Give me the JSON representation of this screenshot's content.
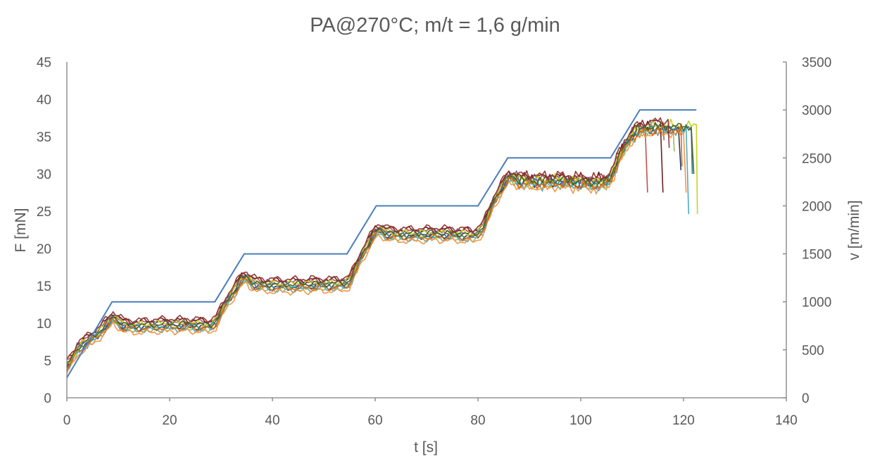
{
  "chart_data": {
    "type": "line",
    "title": "PA@270°C; m/t = 1,6 g/min",
    "xlabel": "t [s]",
    "ylabel_left": "F [mN]",
    "ylabel_right": "v [m/min]",
    "xlim": [
      0,
      140
    ],
    "ylim_left": [
      0,
      45
    ],
    "ylim_right": [
      0,
      3500
    ],
    "x_ticks": [
      "0",
      "20",
      "40",
      "60",
      "80",
      "100",
      "120",
      "140"
    ],
    "y_left_ticks": [
      "0",
      "5",
      "10",
      "15",
      "20",
      "25",
      "30",
      "35",
      "40",
      "45"
    ],
    "y_right_ticks": [
      "0",
      "500",
      "1000",
      "1500",
      "2000",
      "2500",
      "3000",
      "3500"
    ],
    "grid": false,
    "legend": "none",
    "speed_series": {
      "axis": "right",
      "color": "#4a7ebb",
      "points": [
        [
          0,
          210
        ],
        [
          8.8,
          1000
        ],
        [
          28.8,
          1000
        ],
        [
          34.5,
          1500
        ],
        [
          54.5,
          1500
        ],
        [
          60.2,
          2000
        ],
        [
          80,
          2000
        ],
        [
          85.8,
          2500
        ],
        [
          105.8,
          2500
        ],
        [
          111.5,
          3000
        ],
        [
          122.5,
          3000
        ]
      ]
    },
    "force_steps": {
      "axis": "left",
      "points": [
        [
          0,
          4.3
        ],
        [
          1,
          5.2
        ],
        [
          2,
          6.6
        ],
        [
          4,
          7.6
        ],
        [
          6,
          8.6
        ],
        [
          8,
          10.0
        ],
        [
          9,
          10.8
        ],
        [
          10,
          10.3
        ],
        [
          11,
          9.7
        ],
        [
          13,
          9.6
        ],
        [
          16,
          9.7
        ],
        [
          20,
          9.8
        ],
        [
          24,
          9.8
        ],
        [
          28,
          9.7
        ],
        [
          29,
          10.2
        ],
        [
          30,
          11.5
        ],
        [
          31,
          12.8
        ],
        [
          32,
          13.8
        ],
        [
          33,
          14.8
        ],
        [
          34,
          15.9
        ],
        [
          35,
          16.2
        ],
        [
          36,
          15.5
        ],
        [
          37,
          15.2
        ],
        [
          40,
          15.1
        ],
        [
          44,
          15.1
        ],
        [
          48,
          15.2
        ],
        [
          52,
          15.2
        ],
        [
          54,
          15.3
        ],
        [
          55,
          15.6
        ],
        [
          56,
          17.0
        ],
        [
          57,
          18.6
        ],
        [
          58,
          19.9
        ],
        [
          59,
          21.0
        ],
        [
          60,
          22.2
        ],
        [
          61,
          22.6
        ],
        [
          62,
          22.1
        ],
        [
          64,
          21.9
        ],
        [
          68,
          21.9
        ],
        [
          72,
          22.0
        ],
        [
          76,
          21.9
        ],
        [
          79,
          21.8
        ],
        [
          80,
          22.1
        ],
        [
          81,
          22.8
        ],
        [
          82,
          24.5
        ],
        [
          83,
          26.2
        ],
        [
          84,
          27.5
        ],
        [
          85,
          28.6
        ],
        [
          86,
          29.6
        ],
        [
          87,
          29.5
        ],
        [
          88,
          29.1
        ],
        [
          92,
          29.0
        ],
        [
          96,
          29.1
        ],
        [
          100,
          28.9
        ],
        [
          104,
          28.8
        ],
        [
          105,
          29.0
        ],
        [
          106,
          29.8
        ],
        [
          107,
          31.5
        ],
        [
          108,
          33.0
        ],
        [
          109,
          34.2
        ],
        [
          110,
          35.2
        ],
        [
          111,
          35.8
        ],
        [
          113,
          36.2
        ],
        [
          115,
          36.3
        ],
        [
          118,
          36.3
        ],
        [
          120,
          36.2
        ],
        [
          122,
          36.3
        ]
      ]
    },
    "force_series": [
      {
        "color": "#1f3864",
        "shift": -0.3,
        "end": 119.3,
        "drop_to": 30.5
      },
      {
        "color": "#c0504d",
        "shift": 0.4,
        "end": 112.8,
        "drop_to": 27.5
      },
      {
        "color": "#9bbb59",
        "shift": -0.5,
        "end": 118.0,
        "drop_to": 33.0
      },
      {
        "color": "#8064a2",
        "shift": 0.3,
        "end": 116.0,
        "drop_to": 34.5
      },
      {
        "color": "#4bacc6",
        "shift": -0.6,
        "end": 120.8,
        "drop_to": 24.6
      },
      {
        "color": "#f79646",
        "shift": -0.9,
        "end": 120.3,
        "drop_to": 27.5
      },
      {
        "color": "#632423",
        "shift": 0.6,
        "end": 115.8,
        "drop_to": 27.5
      },
      {
        "color": "#c3d41f",
        "shift": 0.2,
        "end": 122.5,
        "drop_to": 24.6
      },
      {
        "color": "#31859c",
        "shift": -0.2,
        "end": 121.5,
        "drop_to": 30.0
      },
      {
        "color": "#e46c0a",
        "shift": -0.4,
        "end": 119.5,
        "drop_to": 31.0
      },
      {
        "color": "#4f6228",
        "shift": 0.1,
        "end": 121.8,
        "drop_to": 30.0
      },
      {
        "color": "#953735",
        "shift": 0.8,
        "end": 117.0,
        "drop_to": 33.5
      }
    ]
  }
}
